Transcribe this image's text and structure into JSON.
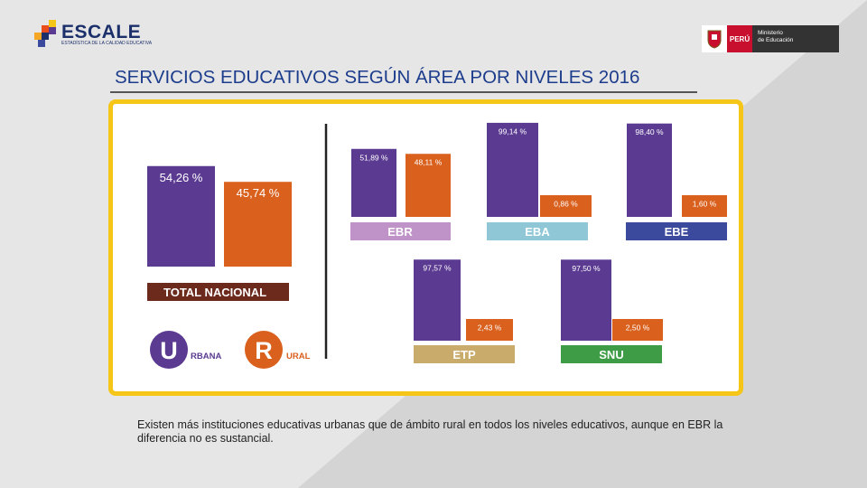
{
  "header": {
    "logo_text": "ESCALE",
    "logo_subtext": "ESTADÍSTICA DE LA CALIDAD EDUCATIVA",
    "gov_country": "PERÚ",
    "gov_ministry_line1": "Ministerio",
    "gov_ministry_line2": "de Educación"
  },
  "slide": {
    "title": "SERVICIOS EDUCATIVOS SEGÚN ÁREA POR NIVELES 2016",
    "caption": "Existen más instituciones educativas urbanas que de ámbito rural en todos los niveles educativos, aunque en EBR la diferencia no es sustancial."
  },
  "legend": {
    "urban_letter": "U",
    "urban_label": "RBANA",
    "rural_letter": "R",
    "rural_label": "URAL"
  },
  "colors": {
    "urban": "#5b3a91",
    "rural": "#d9601d",
    "frame": "#f5c518",
    "total_bar": "#6b2a1c",
    "EBR": "#bf93c7",
    "EBA": "#8fc7d6",
    "EBE": "#3c4a9e",
    "ETP": "#c9ac6b",
    "SNU": "#3d9c45"
  },
  "chart_data": [
    {
      "type": "bar",
      "title": "TOTAL NACIONAL",
      "categories": [
        "Urbana",
        "Rural"
      ],
      "values": [
        54.26,
        45.74
      ],
      "labels": [
        "54,26 %",
        "45,74 %"
      ],
      "ylim": [
        0,
        100
      ]
    },
    {
      "type": "bar",
      "title": "EBR",
      "categories": [
        "Urbana",
        "Rural"
      ],
      "values": [
        51.89,
        48.11
      ],
      "labels": [
        "51,89 %",
        "48,11 %"
      ],
      "ylim": [
        0,
        100
      ]
    },
    {
      "type": "bar",
      "title": "EBA",
      "categories": [
        "Urbana",
        "Rural"
      ],
      "values": [
        99.14,
        0.86
      ],
      "labels": [
        "99,14 %",
        "0,86 %"
      ],
      "ylim": [
        0,
        100
      ]
    },
    {
      "type": "bar",
      "title": "EBE",
      "categories": [
        "Urbana",
        "Rural"
      ],
      "values": [
        98.4,
        1.6
      ],
      "labels": [
        "98,40 %",
        "1,60 %"
      ],
      "ylim": [
        0,
        100
      ]
    },
    {
      "type": "bar",
      "title": "ETP",
      "categories": [
        "Urbana",
        "Rural"
      ],
      "values": [
        97.57,
        2.43
      ],
      "labels": [
        "97,57 %",
        "2,43 %"
      ],
      "ylim": [
        0,
        100
      ]
    },
    {
      "type": "bar",
      "title": "SNU",
      "categories": [
        "Urbana",
        "Rural"
      ],
      "values": [
        97.5,
        2.5
      ],
      "labels": [
        "97,50 %",
        "2,50 %"
      ],
      "ylim": [
        0,
        100
      ]
    }
  ]
}
